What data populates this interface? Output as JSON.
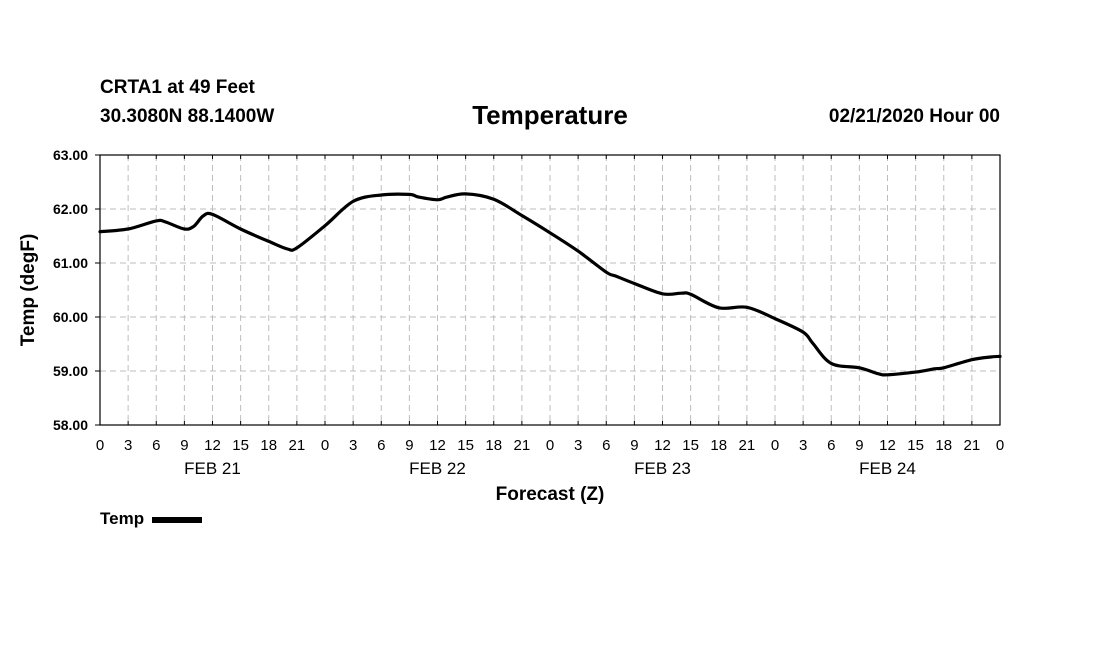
{
  "header": {
    "station": "CRTA1 at 49 Feet",
    "coords": "30.3080N 88.1400W",
    "title": "Temperature",
    "issued": "02/21/2020 Hour 00"
  },
  "legend": {
    "label": "Temp"
  },
  "chart_data": {
    "type": "line",
    "title": "Temperature",
    "xlabel": "Forecast (Z)",
    "ylabel": "Temp (degF)",
    "ylim": [
      58,
      63
    ],
    "xlim": [
      0,
      96
    ],
    "grid": true,
    "legend_position": "bottom-left",
    "y_ticks": [
      "58.00",
      "59.00",
      "60.00",
      "61.00",
      "62.00",
      "63.00"
    ],
    "x_tick_labels": [
      "0",
      "3",
      "6",
      "9",
      "12",
      "15",
      "18",
      "21",
      "0",
      "3",
      "6",
      "9",
      "12",
      "15",
      "18",
      "21",
      "0",
      "3",
      "6",
      "9",
      "12",
      "15",
      "18",
      "21",
      "0",
      "3",
      "6",
      "9",
      "12",
      "15",
      "18",
      "21",
      "0"
    ],
    "day_labels": [
      {
        "hour": 12,
        "label": "FEB 21"
      },
      {
        "hour": 36,
        "label": "FEB 22"
      },
      {
        "hour": 60,
        "label": "FEB 23"
      },
      {
        "hour": 84,
        "label": "FEB 24"
      }
    ],
    "series": [
      {
        "name": "Temp",
        "color": "#000000",
        "x": [
          0,
          3,
          6,
          7,
          9,
          10,
          11,
          12,
          15,
          18,
          20,
          21,
          24,
          27,
          30,
          33,
          34,
          36,
          37,
          39,
          42,
          45,
          48,
          51,
          54,
          55,
          57,
          60,
          62,
          63,
          66,
          69,
          72,
          75,
          76,
          78,
          81,
          83,
          84,
          87,
          89,
          90,
          93,
          95,
          96
        ],
        "y": [
          61.58,
          61.63,
          61.78,
          61.76,
          61.63,
          61.68,
          61.87,
          61.9,
          61.63,
          61.4,
          61.26,
          61.28,
          61.69,
          62.14,
          62.26,
          62.27,
          62.22,
          62.17,
          62.22,
          62.28,
          62.18,
          61.88,
          61.56,
          61.22,
          60.83,
          60.76,
          60.62,
          60.43,
          60.44,
          60.42,
          60.17,
          60.18,
          59.97,
          59.72,
          59.52,
          59.14,
          59.06,
          58.95,
          58.93,
          58.98,
          59.04,
          59.06,
          59.21,
          59.26,
          59.27
        ]
      }
    ]
  }
}
